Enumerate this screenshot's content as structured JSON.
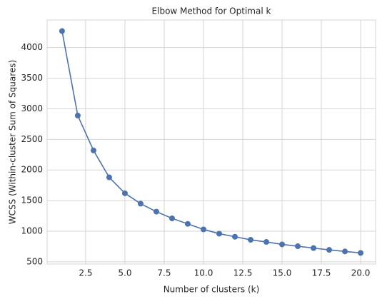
{
  "chart_data": {
    "type": "line",
    "title": "Elbow Method for Optimal k",
    "x_label": "Number of clusters (k)",
    "y_label": "WCSS (Within-cluster Sum of Squares)",
    "x": [
      1,
      2,
      3,
      4,
      5,
      6,
      7,
      8,
      9,
      10,
      11,
      12,
      13,
      14,
      15,
      16,
      17,
      18,
      19,
      20
    ],
    "series": [
      {
        "name": "WCSS",
        "color": "#4c72b0",
        "values": [
          4270,
          2890,
          2320,
          1880,
          1620,
          1450,
          1320,
          1210,
          1120,
          1030,
          960,
          910,
          860,
          825,
          785,
          755,
          725,
          695,
          670,
          645
        ]
      }
    ],
    "xlim": [
      0.05,
      20.95
    ],
    "xticks": [
      2.5,
      {
        "value": 5,
        "label": "5.0"
      },
      7.5,
      {
        "value": 10,
        "label": "10.0"
      },
      12.5,
      {
        "value": 15,
        "label": "15.0"
      },
      17.5,
      {
        "value": 20,
        "label": "20.0"
      }
    ],
    "ylim": [
      464,
      4451
    ],
    "yticks": [
      500,
      1000,
      1500,
      2000,
      2500,
      3000,
      3500,
      4000
    ],
    "grid": true,
    "marker": "o"
  }
}
